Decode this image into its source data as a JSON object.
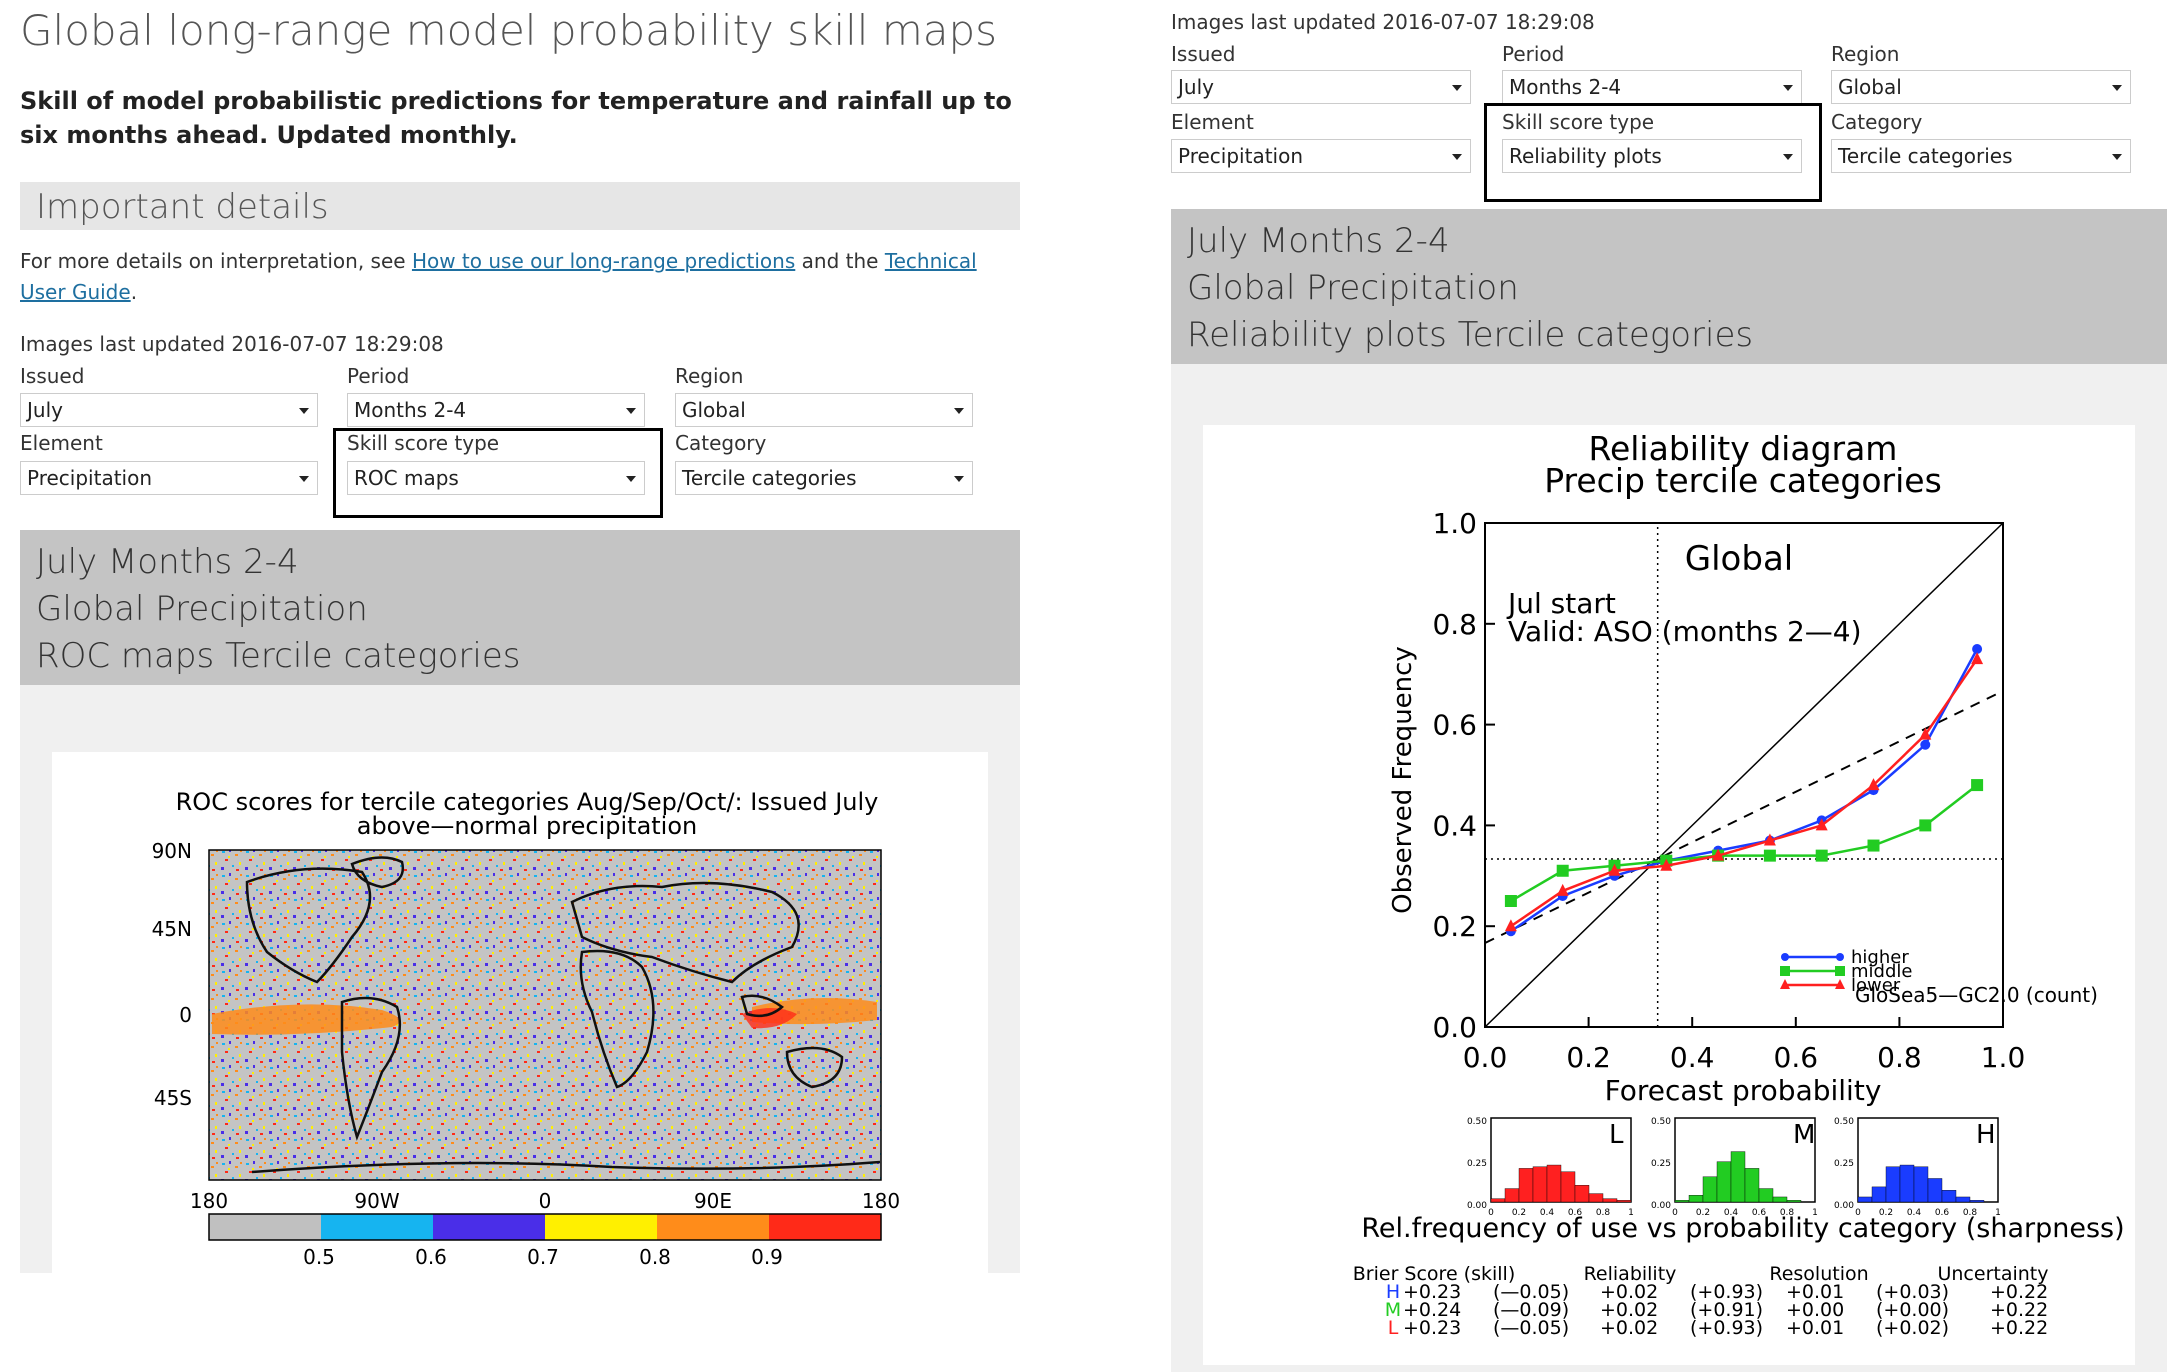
{
  "page_title": "Global long-range model probability skill maps",
  "lead": "Skill of model probabilistic predictions for temperature and rainfall up to six months ahead. Updated monthly.",
  "important": {
    "heading": "Important details",
    "text_before": "For more details on interpretation, see",
    "link1": "How to use our long-range predictions",
    "text_mid": "and the",
    "link2": "Technical User Guide",
    "text_end": "."
  },
  "left": {
    "updated": "Images last updated 2016-07-07 18:29:08",
    "labels": {
      "issued": "Issued",
      "period": "Period",
      "region": "Region",
      "element": "Element",
      "skill": "Skill score type",
      "category": "Category"
    },
    "values": {
      "issued": "July",
      "period": "Months 2-4",
      "region": "Global",
      "element": "Precipitation",
      "skill": "ROC maps",
      "category": "Tercile categories"
    },
    "info": [
      "July Months 2-4",
      "Global Precipitation",
      "ROC maps Tercile categories"
    ],
    "map": {
      "title1": "ROC scores for tercile categories Aug/Sep/Oct/: Issued July",
      "title2": "above—normal precipitation",
      "lat_labels": [
        "90N",
        "45N",
        "0",
        "45S"
      ],
      "lon_labels": [
        "180",
        "90W",
        "0",
        "90E",
        "180"
      ],
      "colorbar_labels": [
        "0.5",
        "0.6",
        "0.7",
        "0.8",
        "0.9"
      ],
      "colorbar_colors": [
        "#c0c0c0",
        "#16b4f0",
        "#4a2ee8",
        "#fff000",
        "#ff8c1a",
        "#ff2a18"
      ]
    }
  },
  "right": {
    "updated": "Images last updated 2016-07-07 18:29:08",
    "labels": {
      "issued": "Issued",
      "period": "Period",
      "region": "Region",
      "element": "Element",
      "skill": "Skill score type",
      "category": "Category"
    },
    "values": {
      "issued": "July",
      "period": "Months 2-4",
      "region": "Global",
      "element": "Precipitation",
      "skill": "Reliability plots",
      "category": "Tercile categories"
    },
    "info": [
      "July Months 2-4",
      "Global Precipitation",
      "Reliability plots Tercile categories"
    ],
    "plot": {
      "title1": "Reliability diagram",
      "title2": "Precip tercile categories",
      "region": "Global",
      "start": "Jul start",
      "valid": "Valid: ASO (months 2—4)",
      "model": "GloSea5—GC2.0 (count)",
      "xlabel": "Forecast probability",
      "ylabel": "Observed Frequency",
      "ticks": [
        "0.0",
        "0.2",
        "0.4",
        "0.6",
        "0.8",
        "1.0"
      ],
      "sharp_title": "Rel.frequency of use vs probability category (sharpness)",
      "hist_letters": [
        "L",
        "M",
        "H"
      ],
      "hist_y_ticks": [
        "0.50",
        "0.25",
        "0.00"
      ],
      "hist_x_ticks": [
        "0",
        "0.2",
        "0.4",
        "0.6",
        "0.8",
        "1"
      ],
      "score_headers": [
        "Brier Score (skill)",
        "Reliability",
        "Resolution",
        "Uncertainty"
      ],
      "score_rows": [
        {
          "cat": "H",
          "color": "#1a3cff",
          "brier": "+0.23",
          "brier_skill": "(—0.05)",
          "rel": "+0.02",
          "rel_skill": "(+0.93)",
          "res": "+0.01",
          "res_skill": "(+0.03)",
          "unc": "+0.22"
        },
        {
          "cat": "M",
          "color": "#22cc22",
          "brier": "+0.24",
          "brier_skill": "(—0.09)",
          "rel": "+0.02",
          "rel_skill": "(+0.91)",
          "res": "+0.00",
          "res_skill": "(+0.00)",
          "unc": "+0.22"
        },
        {
          "cat": "L",
          "color": "#ff2020",
          "brier": "+0.23",
          "brier_skill": "(—0.05)",
          "rel": "+0.02",
          "rel_skill": "(+0.93)",
          "res": "+0.01",
          "res_skill": "(+0.02)",
          "unc": "+0.22"
        }
      ]
    }
  },
  "chart_data": {
    "type": "line",
    "title": "Reliability diagram",
    "subtitle": "Precip tercile categories",
    "xlabel": "Forecast probability",
    "ylabel": "Observed Frequency",
    "xlim": [
      0,
      1
    ],
    "ylim": [
      0,
      1
    ],
    "x": [
      0.05,
      0.15,
      0.25,
      0.35,
      0.45,
      0.55,
      0.65,
      0.75,
      0.85,
      0.95
    ],
    "series": [
      {
        "name": "higher",
        "color": "#1a3cff",
        "values": [
          0.19,
          0.26,
          0.3,
          0.33,
          0.35,
          0.37,
          0.41,
          0.47,
          0.56,
          0.75
        ]
      },
      {
        "name": "middle",
        "color": "#22cc22",
        "values": [
          0.25,
          0.31,
          0.32,
          0.33,
          0.34,
          0.34,
          0.34,
          0.36,
          0.4,
          0.48
        ]
      },
      {
        "name": "lower",
        "color": "#ff2020",
        "values": [
          0.2,
          0.27,
          0.31,
          0.32,
          0.34,
          0.37,
          0.4,
          0.48,
          0.58,
          0.73
        ]
      }
    ],
    "histograms": {
      "L": {
        "color": "#ff2020",
        "values": [
          0.02,
          0.08,
          0.2,
          0.21,
          0.22,
          0.18,
          0.1,
          0.05,
          0.02,
          0.01
        ]
      },
      "M": {
        "color": "#22cc22",
        "values": [
          0.01,
          0.04,
          0.15,
          0.24,
          0.3,
          0.2,
          0.08,
          0.03,
          0.01,
          0.0
        ]
      },
      "H": {
        "color": "#1a3cff",
        "values": [
          0.03,
          0.09,
          0.21,
          0.22,
          0.21,
          0.14,
          0.07,
          0.03,
          0.01,
          0.0
        ]
      }
    }
  }
}
